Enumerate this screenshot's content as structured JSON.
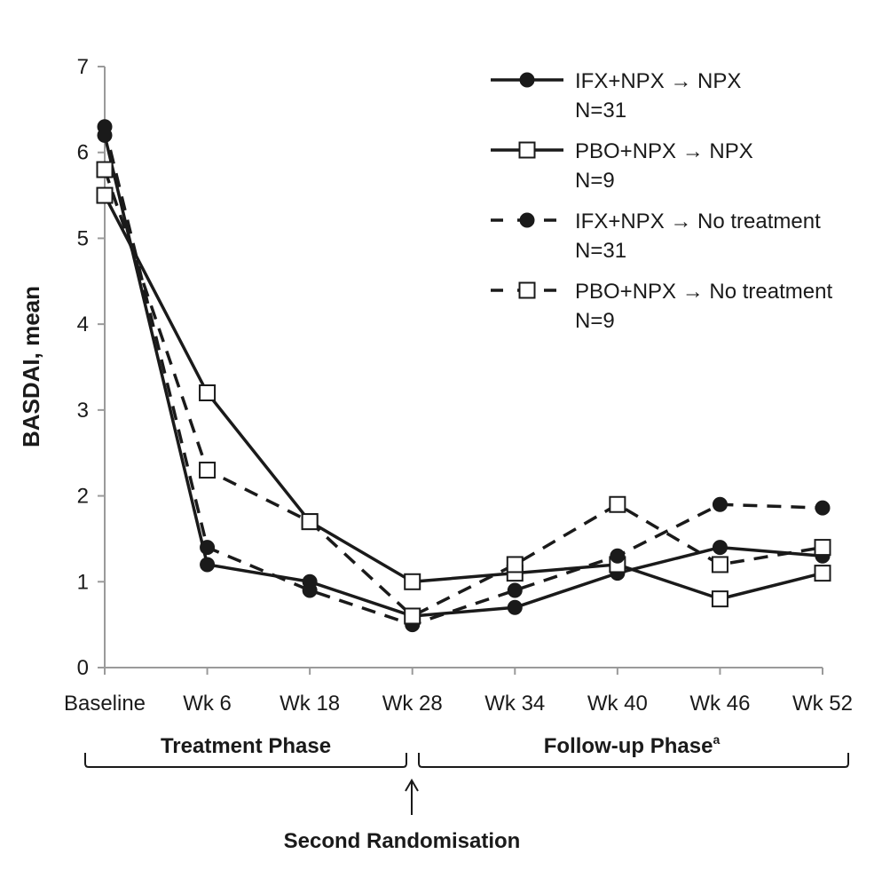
{
  "chart_data": {
    "type": "line",
    "ylabel": "BASDAI, mean",
    "ylim": [
      0,
      7
    ],
    "yticks": [
      "0",
      "1",
      "2",
      "3",
      "4",
      "5",
      "6",
      "7"
    ],
    "categories": [
      "Baseline",
      "Wk 6",
      "Wk 18",
      "Wk 28",
      "Wk 34",
      "Wk 40",
      "Wk 46",
      "Wk 52"
    ],
    "series": [
      {
        "name": "IFX+NPX → NPX",
        "n_label": "N=31",
        "line": "solid",
        "marker": "filled-circle",
        "values": [
          6.2,
          1.2,
          1.0,
          0.6,
          0.7,
          1.1,
          1.4,
          1.3
        ]
      },
      {
        "name": "PBO+NPX → NPX",
        "n_label": "N=9",
        "line": "solid",
        "marker": "open-square",
        "values": [
          5.5,
          3.2,
          1.7,
          1.0,
          1.1,
          1.2,
          0.8,
          1.1
        ]
      },
      {
        "name": "IFX+NPX → No treatment",
        "n_label": "N=31",
        "line": "dashed",
        "marker": "filled-circle",
        "values": [
          6.3,
          1.4,
          0.9,
          0.5,
          0.9,
          1.3,
          1.9,
          1.86
        ]
      },
      {
        "name": "PBO+NPX → No treatment",
        "n_label": "N=9",
        "line": "dashed",
        "marker": "open-square",
        "values": [
          5.8,
          2.3,
          1.7,
          0.6,
          1.2,
          1.9,
          1.2,
          1.4
        ]
      }
    ],
    "legend_position": "top-right",
    "grid": false,
    "phases": {
      "treatment": "Treatment Phase",
      "followup": "Follow-up Phase",
      "followup_superscript": "a",
      "randomisation": "Second Randomisation"
    }
  },
  "colors": {
    "ink": "#1a1a1a",
    "axis": "#9a9a9a",
    "background": "#ffffff"
  }
}
